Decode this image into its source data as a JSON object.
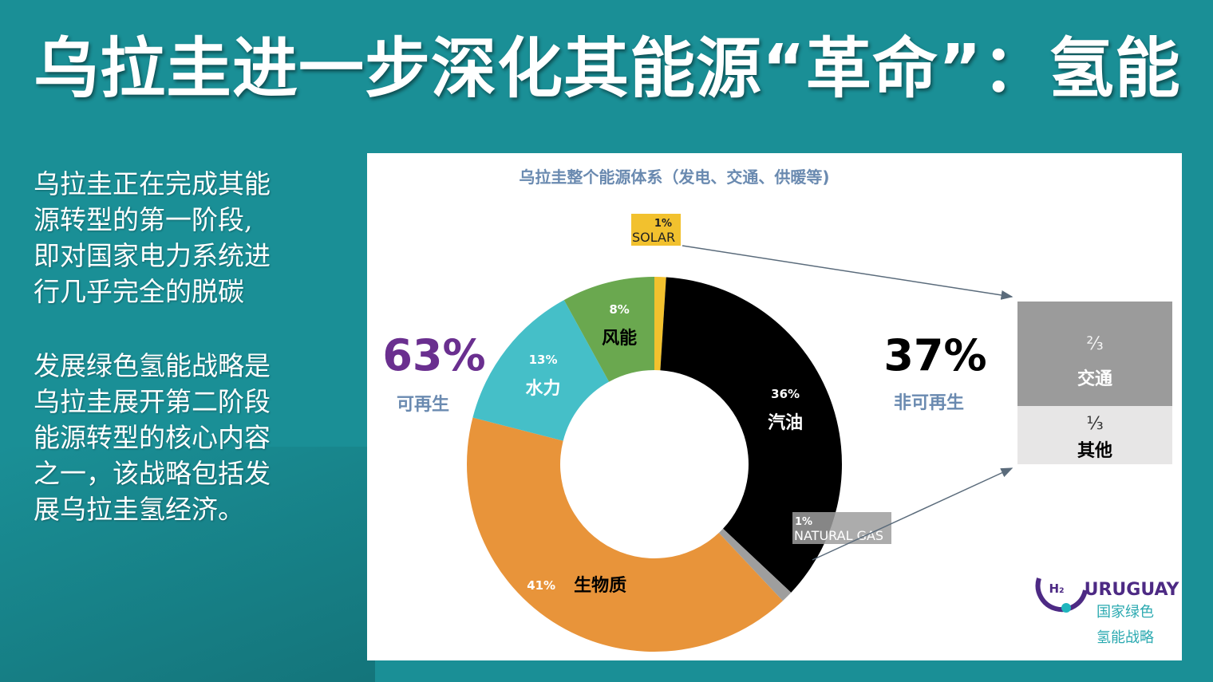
{
  "title": "乌拉圭进一步深化其能源“革命”：氢能",
  "paragraphs": [
    [
      "乌拉圭正在完成其能",
      "源转型的第一阶段,",
      "即对国家电力系统进",
      "行几乎完全的脱碳"
    ],
    [
      "发展绿色氢能战略是",
      "乌拉圭展开第二阶段",
      "能源转型的核心内容",
      "之一，该战略包括发",
      "展乌拉圭氢经济。"
    ]
  ],
  "chart_data": {
    "type": "pie",
    "donut": true,
    "title": "乌拉圭整个能源体系（发电、交通、供暖等)",
    "slices": [
      {
        "label": "SOLAR",
        "value": 1,
        "value_label": "1%",
        "color": "#f2c12e"
      },
      {
        "label": "汽油",
        "value": 36,
        "value_label": "36%",
        "color": "#000000"
      },
      {
        "label": "NATURAL GAS",
        "value": 1,
        "value_label": "1%",
        "color": "#9e9e9e"
      },
      {
        "label": "生物质",
        "value": 41,
        "value_label": "41%",
        "color": "#e8943a"
      },
      {
        "label": "水力",
        "value": 13,
        "value_label": "13%",
        "color": "#45bfc8"
      },
      {
        "label": "风能",
        "value": 8,
        "value_label": "8%",
        "color": "#6aa84f"
      }
    ],
    "summary": {
      "renewable": {
        "value": "63%",
        "label": "可再生",
        "color": "#6a2f8f"
      },
      "non_renewable": {
        "value": "37%",
        "label": "非可再生",
        "color": "#000000"
      }
    },
    "breakdown": [
      {
        "fraction": "⅔",
        "label": "交通",
        "color": "#9b9b9b"
      },
      {
        "fraction": "⅓",
        "label": "其他",
        "color": "#e7e6e6"
      }
    ]
  },
  "logo": {
    "h2": "H₂",
    "name": "URUGUAY",
    "line1": "国家绿色",
    "line2": "氢能战略"
  }
}
